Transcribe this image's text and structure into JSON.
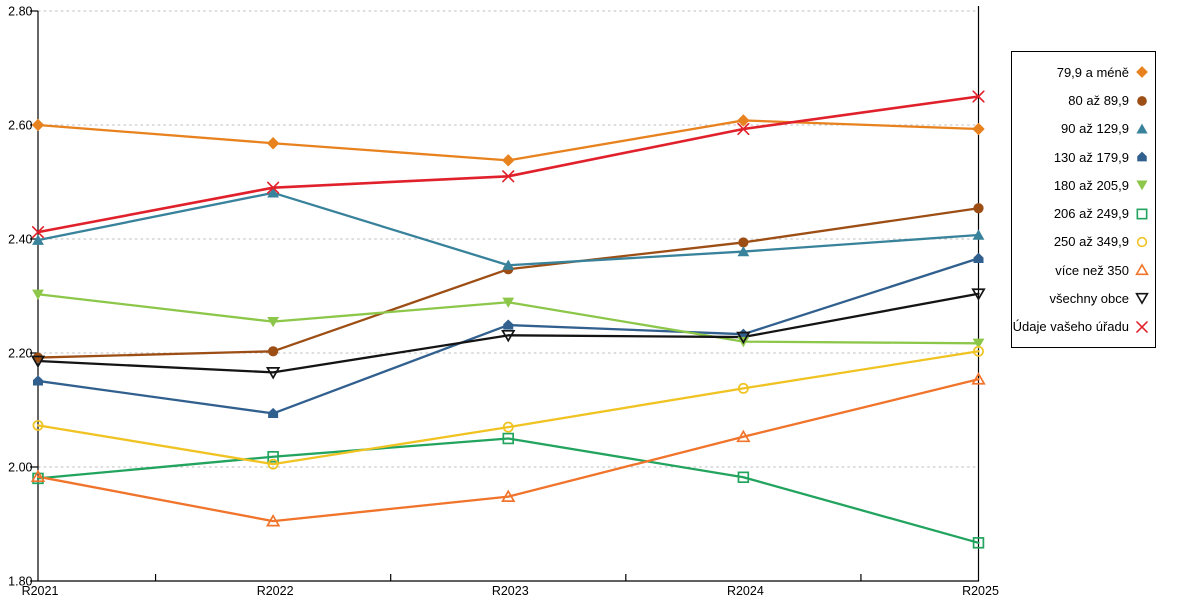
{
  "chart_data": {
    "type": "line",
    "title": "",
    "xlabel": "",
    "ylabel": "",
    "categories": [
      "R2021",
      "R2022",
      "R2023",
      "R2024",
      "R2025"
    ],
    "y_axis": {
      "min": 1.8,
      "max": 2.8,
      "step": 0.2,
      "tick_labels": [
        "1.80",
        "2.00",
        "2.20",
        "2.40",
        "2.60",
        "2.80"
      ]
    },
    "grid": "horizontal dashed gray",
    "legend_position": "right outside",
    "colors": {
      "axis": "#000000",
      "gridline": "#bdbdbd",
      "background": "#ffffff"
    },
    "series": [
      {
        "name": "79,9 a méně",
        "color": "#e8821e",
        "marker": "diamond",
        "values": [
          2.6,
          2.568,
          2.538,
          2.608,
          2.593
        ]
      },
      {
        "name": "80 až 89,9",
        "color": "#9c4e15",
        "marker": "circle",
        "values": [
          2.192,
          2.203,
          2.347,
          2.394,
          2.454
        ]
      },
      {
        "name": "90 až 129,9",
        "color": "#38829b",
        "marker": "triangle-up",
        "values": [
          2.398,
          2.481,
          2.354,
          2.378,
          2.407
        ]
      },
      {
        "name": "130 až 179,9",
        "color": "#31608f",
        "marker": "pentagon",
        "values": [
          2.151,
          2.094,
          2.249,
          2.233,
          2.366
        ]
      },
      {
        "name": "180 až 205,9",
        "color": "#8cc74a",
        "marker": "triangle-down",
        "values": [
          2.303,
          2.255,
          2.289,
          2.22,
          2.217
        ]
      },
      {
        "name": "206 až 249,9",
        "color": "#22a45f",
        "marker": "square-open",
        "values": [
          1.98,
          2.018,
          2.05,
          1.982,
          1.867
        ]
      },
      {
        "name": "250 až 349,9",
        "color": "#f0c323",
        "marker": "circle-open",
        "values": [
          2.073,
          2.005,
          2.07,
          2.138,
          2.203
        ]
      },
      {
        "name": "více než 350",
        "color": "#f0742b",
        "marker": "triangle-up-open",
        "values": [
          1.983,
          1.905,
          1.948,
          2.053,
          2.154
        ]
      },
      {
        "name": "všechny obce",
        "color": "#141414",
        "marker": "triangle-down-open",
        "values": [
          2.186,
          2.166,
          2.231,
          2.228,
          2.304
        ]
      },
      {
        "name": "Údaje vašeho úřadu",
        "color": "#e0212b",
        "marker": "x",
        "values": [
          2.412,
          2.49,
          2.51,
          2.593,
          2.65
        ]
      }
    ]
  }
}
